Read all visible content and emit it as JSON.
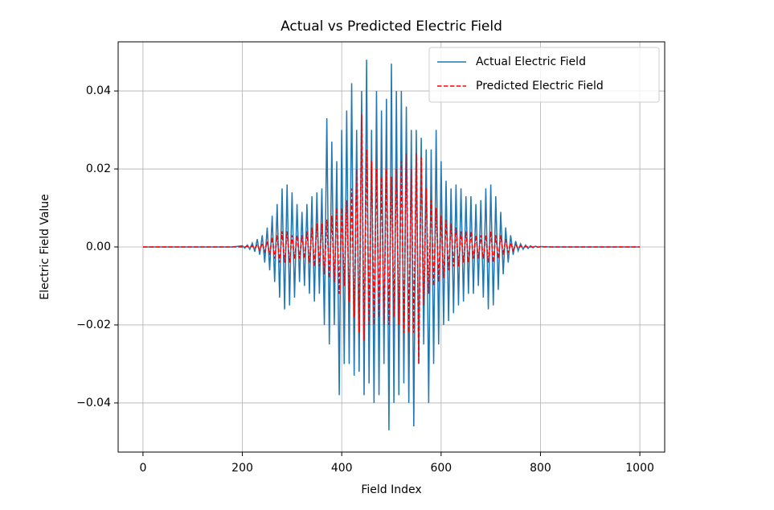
{
  "chart_data": {
    "type": "line",
    "title": "Actual vs Predicted Electric Field",
    "x_label": "Field Index",
    "y_label": "Electric Field Value",
    "xlim": [
      -50,
      1050
    ],
    "ylim": [
      -0.0526,
      0.0526
    ],
    "xticks": [
      0,
      200,
      400,
      600,
      800,
      1000
    ],
    "yticks": [
      {
        "value": -0.04,
        "label": "−0.04"
      },
      {
        "value": -0.02,
        "label": "−0.02"
      },
      {
        "value": 0,
        "label": "0.00"
      },
      0.02,
      0.04
    ],
    "grid": true,
    "legend": "upper right",
    "x": [
      0,
      20,
      40,
      60,
      80,
      100,
      120,
      140,
      160,
      180,
      200,
      205,
      210,
      215,
      220,
      225,
      230,
      235,
      240,
      245,
      250,
      255,
      260,
      265,
      270,
      275,
      280,
      285,
      290,
      295,
      300,
      305,
      310,
      315,
      320,
      325,
      330,
      335,
      340,
      345,
      350,
      355,
      360,
      365,
      370,
      375,
      380,
      385,
      390,
      395,
      400,
      405,
      410,
      415,
      420,
      425,
      430,
      435,
      440,
      445,
      450,
      455,
      460,
      465,
      470,
      475,
      480,
      485,
      490,
      495,
      500,
      505,
      510,
      515,
      520,
      525,
      530,
      535,
      540,
      545,
      550,
      555,
      560,
      565,
      570,
      575,
      580,
      585,
      590,
      595,
      600,
      605,
      610,
      615,
      620,
      625,
      630,
      635,
      640,
      645,
      650,
      655,
      660,
      665,
      670,
      675,
      680,
      685,
      690,
      695,
      700,
      705,
      710,
      715,
      720,
      725,
      730,
      735,
      740,
      745,
      750,
      755,
      760,
      765,
      770,
      775,
      780,
      785,
      790,
      795,
      800,
      820,
      840,
      860,
      880,
      900,
      920,
      940,
      960,
      980,
      1000
    ],
    "series": [
      {
        "name": "Actual Electric Field",
        "color": "#1f77b4",
        "linestyle": "solid",
        "values": [
          0,
          0,
          0,
          0,
          0,
          0,
          0,
          0,
          0,
          0,
          0.0003,
          -0.0003,
          0.0005,
          -0.0006,
          0.001,
          -0.0012,
          0.002,
          -0.002,
          0.003,
          -0.004,
          0.005,
          -0.006,
          0.008,
          -0.009,
          0.011,
          -0.013,
          0.015,
          -0.016,
          0.016,
          -0.015,
          0.014,
          -0.013,
          0.011,
          -0.009,
          0.009,
          -0.01,
          0.011,
          -0.012,
          0.013,
          -0.014,
          0.014,
          -0.012,
          0.015,
          -0.02,
          0.033,
          -0.025,
          0.027,
          -0.02,
          0.022,
          -0.038,
          0.03,
          -0.03,
          0.035,
          -0.03,
          0.042,
          -0.033,
          0.03,
          -0.032,
          0.04,
          -0.038,
          0.048,
          -0.035,
          0.03,
          -0.04,
          0.04,
          -0.038,
          0.035,
          -0.03,
          0.038,
          -0.047,
          0.047,
          -0.04,
          0.04,
          -0.038,
          0.04,
          -0.035,
          0.036,
          -0.04,
          0.03,
          -0.046,
          0.03,
          -0.03,
          0.028,
          -0.025,
          0.025,
          -0.04,
          0.025,
          -0.03,
          0.03,
          -0.025,
          0.022,
          -0.02,
          0.017,
          -0.019,
          0.015,
          -0.017,
          0.016,
          -0.015,
          0.015,
          -0.014,
          0.013,
          -0.012,
          0.013,
          -0.012,
          0.011,
          -0.01,
          0.012,
          -0.013,
          0.015,
          -0.016,
          0.016,
          -0.015,
          0.013,
          -0.011,
          0.009,
          -0.007,
          0.005,
          -0.004,
          0.003,
          -0.002,
          0.0015,
          -0.001,
          0.0008,
          -0.0006,
          0.0005,
          -0.0004,
          0.0003,
          -0.0002,
          0.0002,
          -0.0001,
          0.0001,
          0,
          0,
          0,
          0,
          0,
          0,
          0,
          0,
          0,
          0
        ]
      },
      {
        "name": "Predicted Electric Field",
        "color": "#ff0000",
        "linestyle": "dashed",
        "values": [
          0,
          0,
          0,
          0,
          0,
          0,
          0,
          0,
          0,
          0,
          0,
          0,
          0.0002,
          -0.0002,
          0.0003,
          -0.0004,
          0.0006,
          -0.0008,
          0.001,
          -0.0012,
          0.0015,
          -0.002,
          0.0025,
          -0.003,
          0.003,
          -0.004,
          0.004,
          -0.004,
          0.004,
          -0.004,
          0.003,
          -0.003,
          0.003,
          -0.003,
          0.003,
          -0.003,
          0.004,
          -0.004,
          0.005,
          -0.005,
          0.006,
          -0.005,
          0.006,
          -0.007,
          0.007,
          -0.008,
          0.008,
          -0.009,
          0.01,
          -0.012,
          0.01,
          -0.01,
          0.012,
          -0.014,
          0.015,
          -0.018,
          0.02,
          -0.022,
          0.034,
          -0.024,
          0.025,
          -0.02,
          0.022,
          -0.02,
          0.02,
          -0.018,
          0.018,
          -0.02,
          0.02,
          -0.02,
          0.018,
          -0.018,
          0.02,
          -0.02,
          0.022,
          -0.022,
          0.024,
          -0.022,
          0.02,
          -0.022,
          0.024,
          -0.03,
          0.023,
          -0.015,
          0.015,
          -0.012,
          0.012,
          -0.01,
          0.01,
          -0.009,
          0.008,
          -0.008,
          0.007,
          -0.006,
          0.006,
          -0.005,
          0.005,
          -0.005,
          0.004,
          -0.004,
          0.004,
          -0.004,
          0.004,
          -0.003,
          0.003,
          -0.003,
          0.003,
          -0.003,
          0.003,
          -0.004,
          0.004,
          -0.004,
          0.003,
          -0.003,
          0.003,
          -0.002,
          0.002,
          -0.0015,
          0.001,
          -0.0008,
          0.0006,
          -0.0004,
          0.0003,
          -0.0002,
          0.0001,
          0,
          0,
          0,
          0,
          0,
          0,
          0,
          0,
          0,
          0,
          0,
          0,
          0,
          0,
          0,
          0
        ]
      }
    ]
  }
}
